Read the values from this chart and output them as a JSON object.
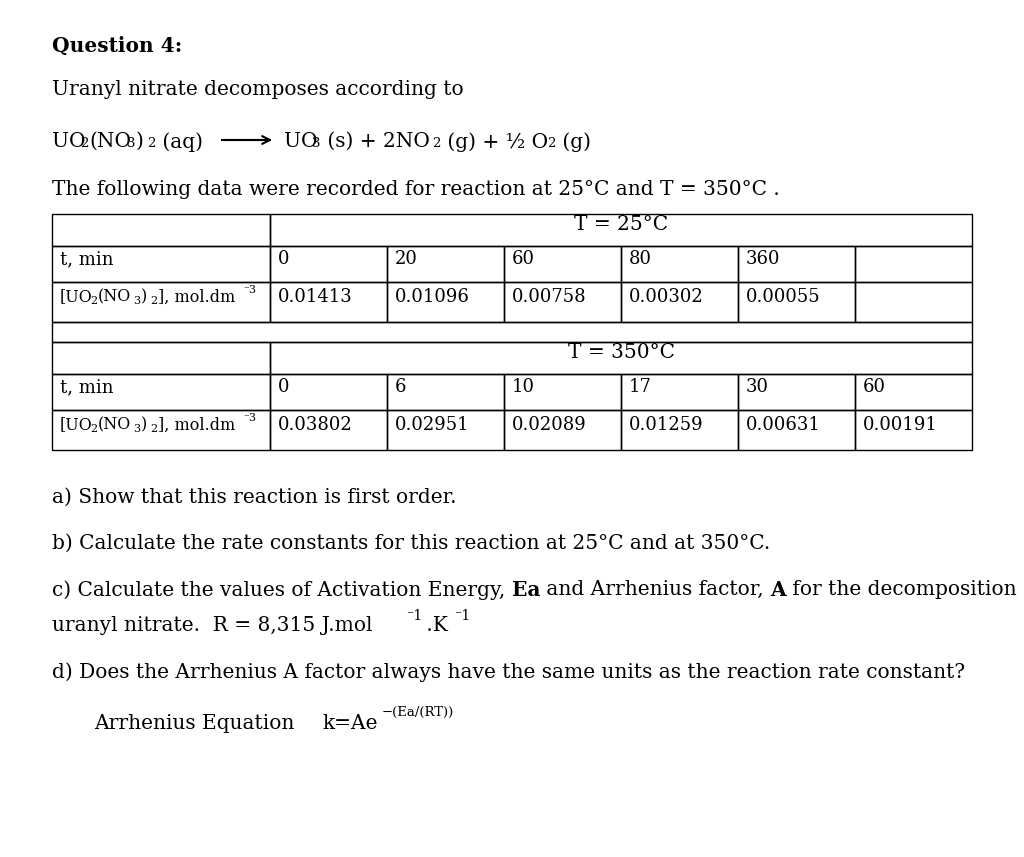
{
  "background_color": "#ffffff",
  "table1_times": [
    "0",
    "20",
    "60",
    "80",
    "360",
    ""
  ],
  "table1_concs": [
    "0.01413",
    "0.01096",
    "0.00758",
    "0.00302",
    "0.00055",
    ""
  ],
  "table2_times": [
    "0",
    "6",
    "10",
    "17",
    "30",
    "60"
  ],
  "table2_concs": [
    "0.03802",
    "0.02951",
    "0.02089",
    "0.01259",
    "0.00631",
    "0.00191"
  ],
  "question_a": "a) Show that this reaction is first order.",
  "question_b": "b) Calculate the rate constants for this reaction at 25°C and at 350°C.",
  "question_d": "d) Does the Arrhenius A factor always have the same units as the reaction rate constant?"
}
